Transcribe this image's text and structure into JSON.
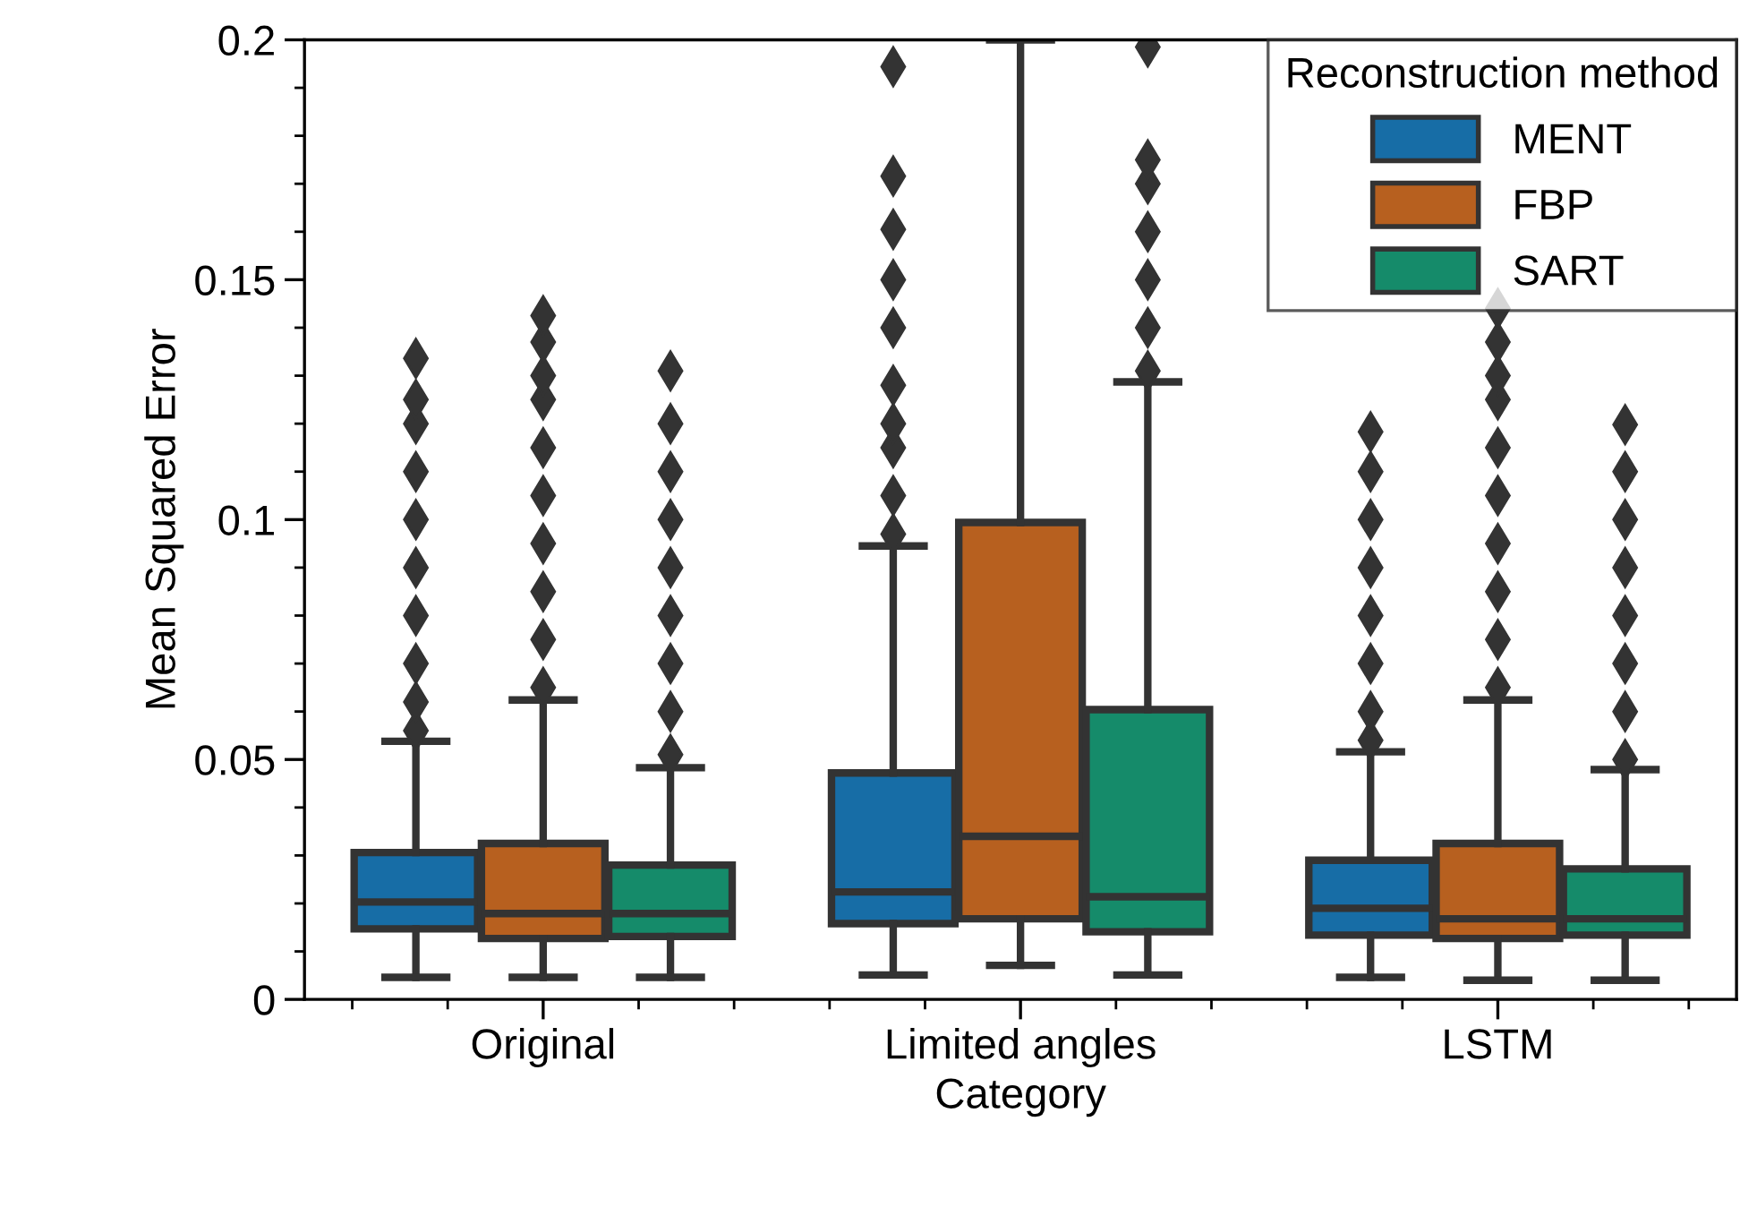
{
  "chart_data": {
    "type": "box",
    "xlabel": "Category",
    "ylabel": "Mean Squared Error",
    "legend_title": "Reconstruction method",
    "legend": "top right",
    "categories": [
      "Original",
      "Limited angles",
      "LSTM"
    ],
    "ylim": [
      0,
      0.2
    ],
    "yticks": [
      0,
      0.05,
      0.1,
      0.15,
      0.2
    ],
    "marker": "diamond",
    "series": [
      {
        "name": "MENT",
        "color": "#176da6",
        "boxes": [
          {
            "low": 0.0046,
            "q1": 0.0147,
            "median": 0.0203,
            "q3": 0.0306,
            "high": 0.0538,
            "outliers": [
              0.056,
              0.062,
              0.07,
              0.08,
              0.09,
              0.1,
              0.11,
              0.12,
              0.125,
              0.1336
            ]
          },
          {
            "low": 0.0051,
            "q1": 0.0158,
            "median": 0.0224,
            "q3": 0.0472,
            "high": 0.0945,
            "outliers": [
              0.097,
              0.105,
              0.115,
              0.12,
              0.128,
              0.14,
              0.15,
              0.1605,
              0.1716,
              0.1944
            ]
          },
          {
            "low": 0.0046,
            "q1": 0.0134,
            "median": 0.019,
            "q3": 0.029,
            "high": 0.0516,
            "outliers": [
              0.054,
              0.06,
              0.07,
              0.08,
              0.09,
              0.1,
              0.11,
              0.1183
            ]
          }
        ]
      },
      {
        "name": "FBP",
        "color": "#b7601f",
        "boxes": [
          {
            "low": 0.0046,
            "q1": 0.0127,
            "median": 0.0179,
            "q3": 0.0325,
            "high": 0.0624,
            "outliers": [
              0.065,
              0.075,
              0.085,
              0.095,
              0.105,
              0.115,
              0.125,
              0.13,
              0.137,
              0.1425
            ]
          },
          {
            "low": 0.0071,
            "q1": 0.0168,
            "median": 0.034,
            "q3": 0.0994,
            "high": 0.2
          },
          {
            "low": 0.004,
            "q1": 0.0127,
            "median": 0.0168,
            "q3": 0.0325,
            "high": 0.0624,
            "outliers": [
              0.065,
              0.075,
              0.085,
              0.095,
              0.105,
              0.115,
              0.125,
              0.13,
              0.137,
              0.144
            ]
          }
        ]
      },
      {
        "name": "SART",
        "color": "#158b6a",
        "boxes": [
          {
            "low": 0.0046,
            "q1": 0.0131,
            "median": 0.0179,
            "q3": 0.028,
            "high": 0.0483,
            "outliers": [
              0.051,
              0.06,
              0.07,
              0.08,
              0.09,
              0.1,
              0.11,
              0.12,
              0.131
            ]
          },
          {
            "low": 0.0051,
            "q1": 0.0141,
            "median": 0.0214,
            "q3": 0.0604,
            "high": 0.1287,
            "outliers": [
              0.131,
              0.14,
              0.15,
              0.16,
              0.17,
              0.175,
              0.1985
            ]
          },
          {
            "low": 0.004,
            "q1": 0.0134,
            "median": 0.0168,
            "q3": 0.0272,
            "high": 0.0479,
            "outliers": [
              0.05,
              0.06,
              0.07,
              0.08,
              0.09,
              0.1,
              0.11,
              0.1198
            ]
          }
        ]
      }
    ]
  }
}
